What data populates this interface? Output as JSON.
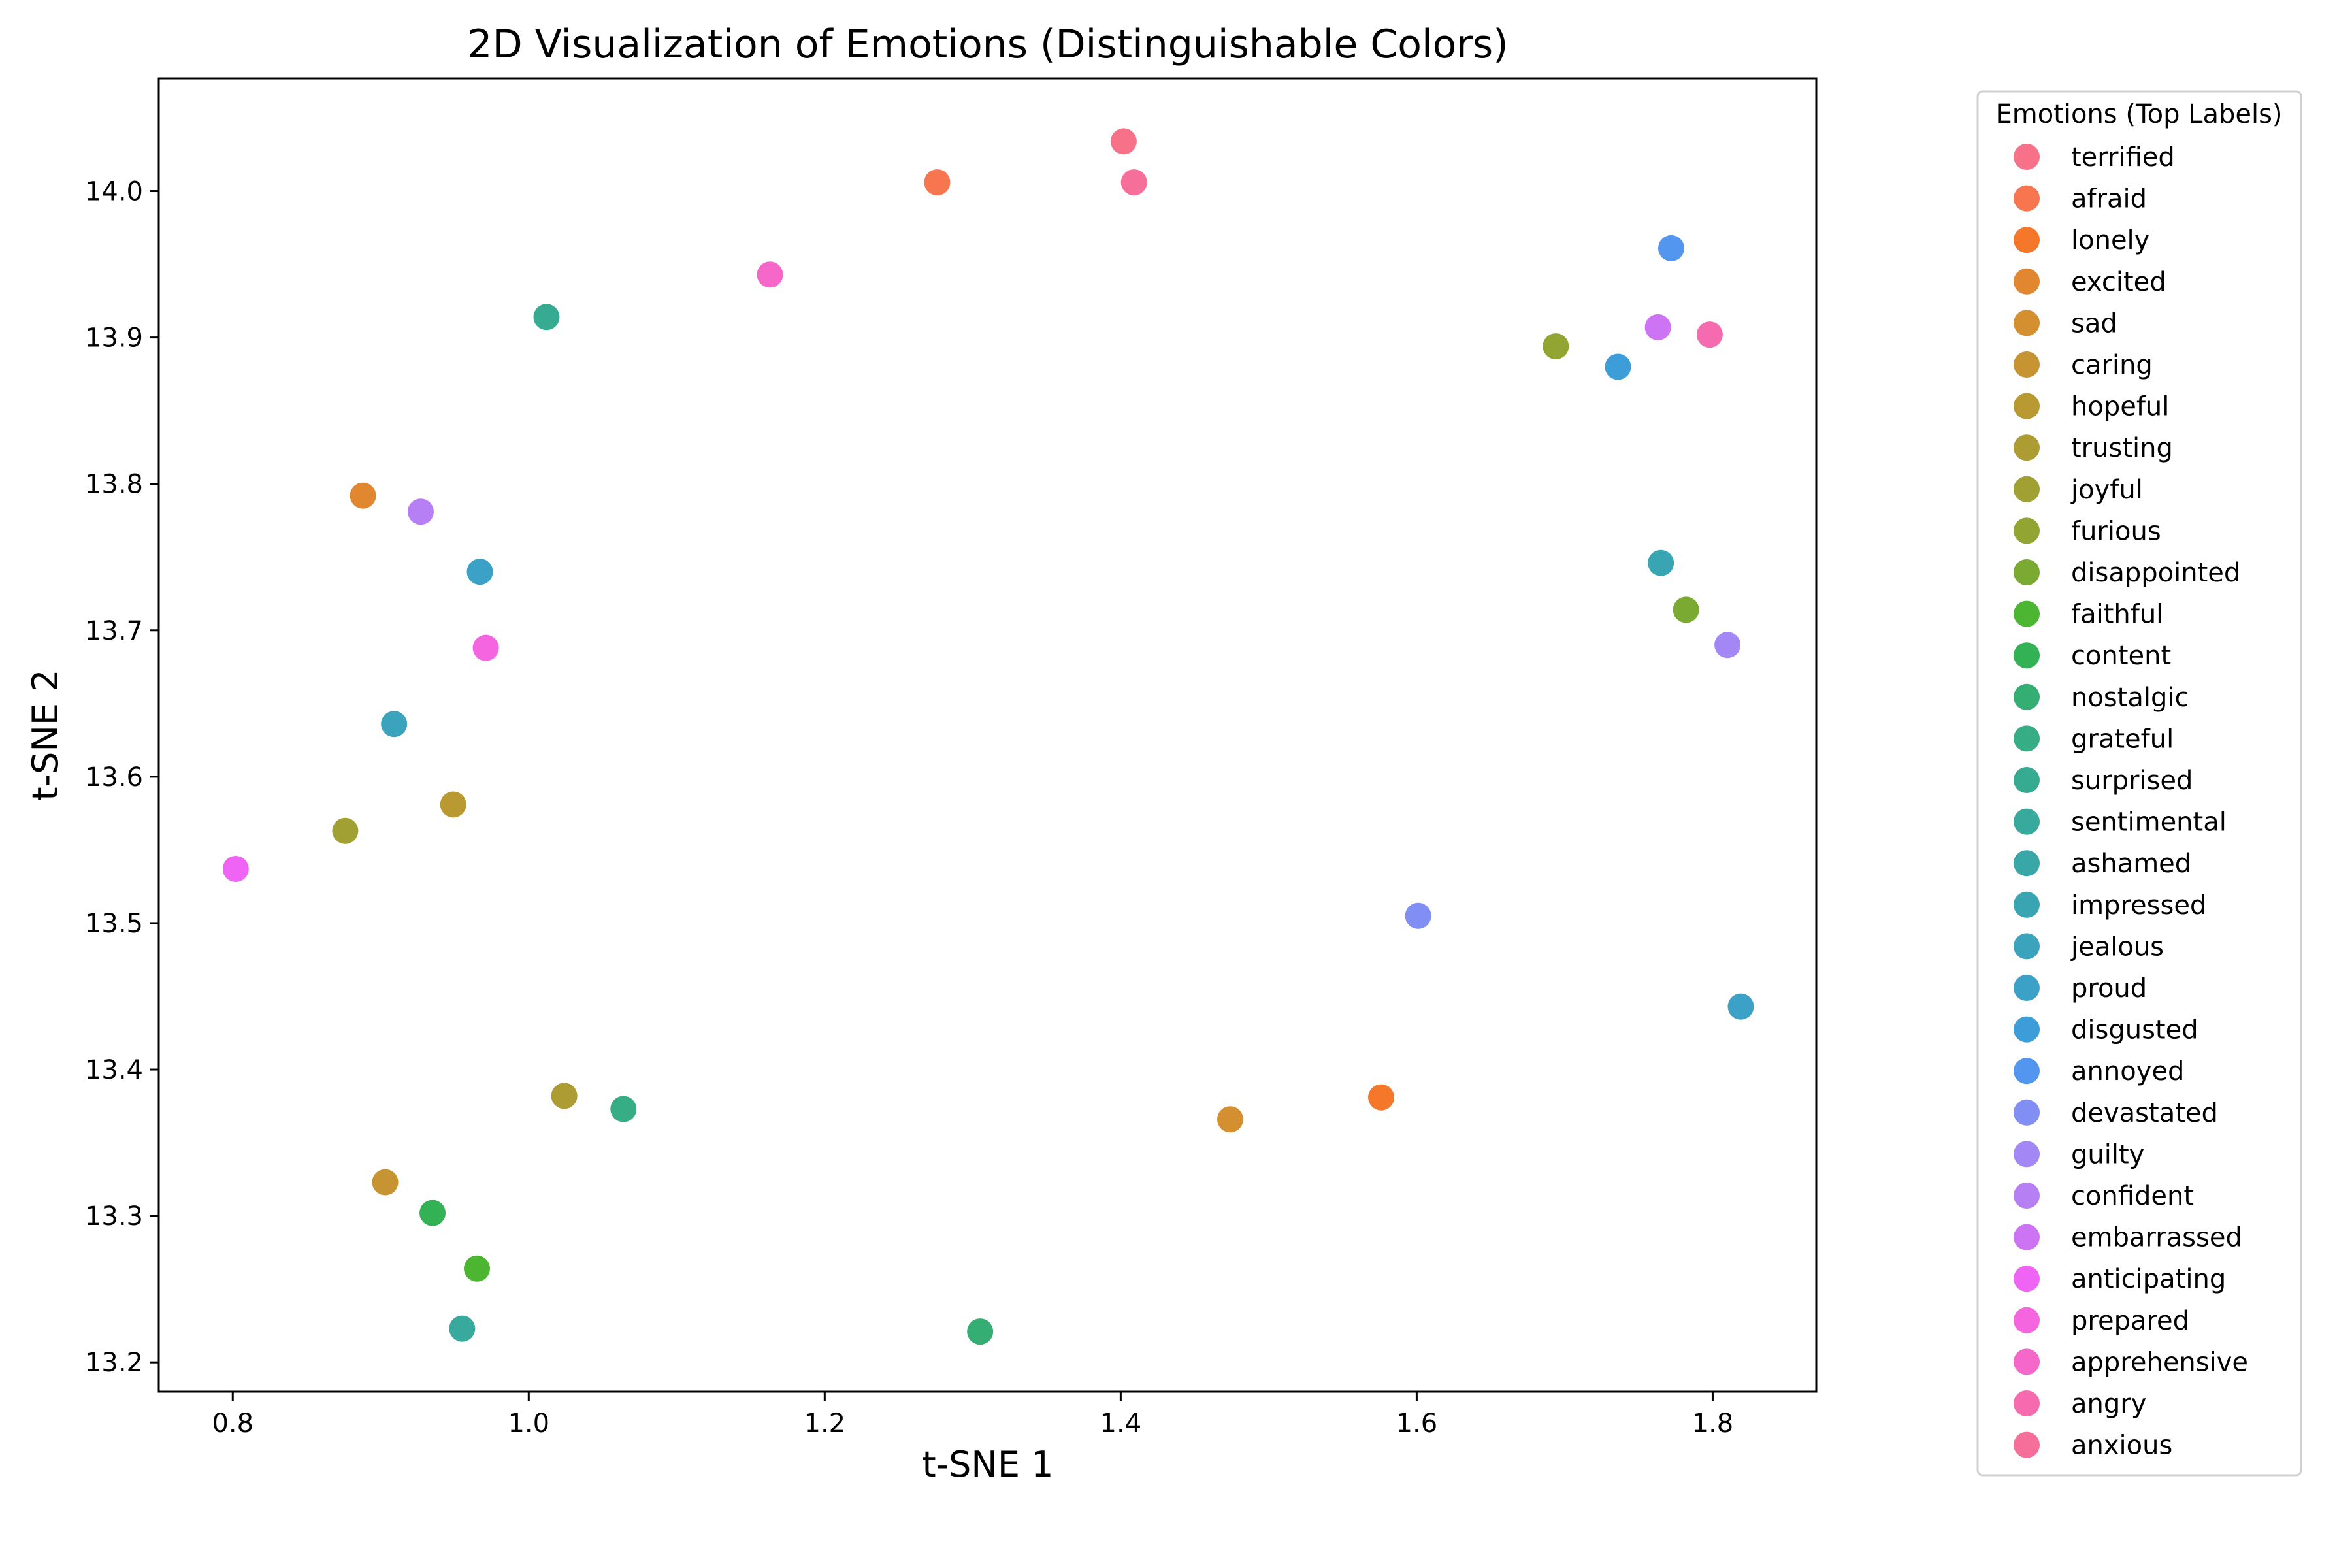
{
  "chart_data": {
    "type": "scatter",
    "title": "2D Visualization of Emotions (Distinguishable Colors)",
    "xlabel": "t-SNE 1",
    "ylabel": "t-SNE 2",
    "xlim": [
      0.75,
      1.87
    ],
    "ylim": [
      13.18,
      14.077
    ],
    "xticks": [
      0.8,
      1.0,
      1.2,
      1.4,
      1.6,
      1.8
    ],
    "yticks": [
      13.2,
      13.3,
      13.4,
      13.5,
      13.6,
      13.7,
      13.8,
      13.9,
      14.0
    ],
    "xtick_labels": [
      "0.8",
      "1.0",
      "1.2",
      "1.4",
      "1.6",
      "1.8"
    ],
    "ytick_labels": [
      "13.2",
      "13.3",
      "13.4",
      "13.5",
      "13.6",
      "13.7",
      "13.8",
      "13.9",
      "14.0"
    ],
    "grid": false,
    "legend": {
      "title": "Emotions (Top Labels)",
      "placement": "outside-right"
    },
    "series": [
      {
        "name": "terrified",
        "color": "#f77189",
        "points": [
          [
            1.402,
            14.034
          ]
        ]
      },
      {
        "name": "afraid",
        "color": "#f7754f",
        "points": [
          [
            1.276,
            14.006
          ]
        ]
      },
      {
        "name": "lonely",
        "color": "#f5782a",
        "points": [
          [
            1.576,
            13.381
          ]
        ]
      },
      {
        "name": "excited",
        "color": "#e1872f",
        "points": [
          [
            0.888,
            13.792
          ]
        ]
      },
      {
        "name": "sad",
        "color": "#d48f31",
        "points": [
          [
            1.474,
            13.366
          ]
        ]
      },
      {
        "name": "caring",
        "color": "#c69432",
        "points": [
          [
            0.903,
            13.323
          ]
        ]
      },
      {
        "name": "hopeful",
        "color": "#b99932",
        "points": [
          [
            0.949,
            13.581
          ]
        ]
      },
      {
        "name": "trusting",
        "color": "#ad9c32",
        "points": [
          [
            1.024,
            13.382
          ]
        ]
      },
      {
        "name": "joyful",
        "color": "#a1a032",
        "points": [
          [
            0.876,
            13.563
          ]
        ]
      },
      {
        "name": "furious",
        "color": "#92a432",
        "points": [
          [
            1.694,
            13.894
          ]
        ]
      },
      {
        "name": "disappointed",
        "color": "#7aaa32",
        "points": [
          [
            1.782,
            13.714
          ]
        ]
      },
      {
        "name": "faithful",
        "color": "#4cb532",
        "points": [
          [
            0.965,
            13.264
          ]
        ]
      },
      {
        "name": "content",
        "color": "#33b255",
        "points": [
          [
            0.935,
            13.302
          ]
        ]
      },
      {
        "name": "nostalgic",
        "color": "#35ae73",
        "points": [
          [
            1.305,
            13.221
          ]
        ]
      },
      {
        "name": "grateful",
        "color": "#36ad84",
        "points": [
          [
            1.064,
            13.373
          ]
        ]
      },
      {
        "name": "surprised",
        "color": "#37ab91",
        "points": [
          [
            1.012,
            13.914
          ]
        ]
      },
      {
        "name": "sentimental",
        "color": "#38a99d",
        "points": [
          [
            0.955,
            13.223
          ]
        ]
      },
      {
        "name": "ashamed",
        "color": "#39a7a8",
        "points": []
      },
      {
        "name": "impressed",
        "color": "#3aa5b2",
        "points": [
          [
            1.765,
            13.746
          ]
        ]
      },
      {
        "name": "jealous",
        "color": "#3ba3bc",
        "points": [
          [
            0.909,
            13.636
          ]
        ]
      },
      {
        "name": "proud",
        "color": "#3ca1c7",
        "points": [
          [
            1.819,
            13.443
          ],
          [
            0.967,
            13.74
          ]
        ]
      },
      {
        "name": "disgusted",
        "color": "#3c9dd8",
        "points": [
          [
            1.736,
            13.88
          ]
        ]
      },
      {
        "name": "annoyed",
        "color": "#5296ef",
        "points": [
          [
            1.772,
            13.961
          ]
        ]
      },
      {
        "name": "devastated",
        "color": "#818ef4",
        "points": [
          [
            1.601,
            13.505
          ]
        ]
      },
      {
        "name": "guilty",
        "color": "#a387f4",
        "points": [
          [
            1.81,
            13.69
          ]
        ]
      },
      {
        "name": "confident",
        "color": "#b67ff4",
        "points": [
          [
            0.927,
            13.781
          ]
        ]
      },
      {
        "name": "embarrassed",
        "color": "#cd74f4",
        "points": [
          [
            1.763,
            13.907
          ]
        ]
      },
      {
        "name": "anticipating",
        "color": "#ef64f4",
        "points": [
          [
            0.802,
            13.537
          ]
        ]
      },
      {
        "name": "prepared",
        "color": "#f565e0",
        "points": [
          [
            0.971,
            13.688
          ]
        ]
      },
      {
        "name": "apprehensive",
        "color": "#f567c8",
        "points": [
          [
            1.163,
            13.943
          ]
        ]
      },
      {
        "name": "angry",
        "color": "#f66bb0",
        "points": [
          [
            1.798,
            13.902
          ]
        ]
      },
      {
        "name": "anxious",
        "color": "#f66f9b",
        "points": [
          [
            1.409,
            14.006
          ]
        ]
      }
    ]
  }
}
